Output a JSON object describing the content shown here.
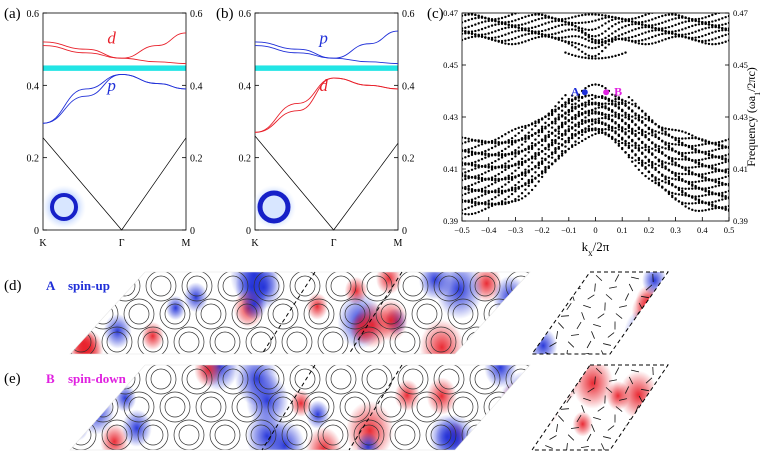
{
  "chart_data": [
    {
      "type": "line",
      "panel": "(a)",
      "xticks": [
        "K",
        "Γ",
        "M"
      ],
      "ylim": [
        0,
        0.6
      ],
      "yticks": [
        0,
        0.2,
        0.4,
        0.6
      ],
      "ytick_labels": [
        "0",
        "0.2",
        "0.4",
        "0.6"
      ],
      "gap": [
        0.44,
        0.455
      ],
      "band_labels": [
        {
          "text": "d",
          "color": "#e8202a"
        },
        {
          "text": "p",
          "color": "#1f2fd8"
        }
      ],
      "series": [
        {
          "color": "#000000",
          "x": [
            0,
            0.55,
            1
          ],
          "values": [
            0.255,
            0.0,
            0.255
          ]
        },
        {
          "color": "#1f2fd8",
          "x": [
            0,
            0.3,
            0.55,
            0.8,
            1
          ],
          "values": [
            0.295,
            0.39,
            0.43,
            0.405,
            0.39
          ]
        },
        {
          "color": "#1f2fd8",
          "x": [
            0,
            0.3,
            0.55,
            0.8,
            1
          ],
          "values": [
            0.295,
            0.37,
            0.43,
            0.405,
            0.39
          ]
        },
        {
          "color": "#e8202a",
          "x": [
            0,
            0.3,
            0.55,
            0.8,
            1
          ],
          "values": [
            0.52,
            0.5,
            0.475,
            0.51,
            0.545
          ]
        },
        {
          "color": "#e8202a",
          "x": [
            0,
            0.3,
            0.55,
            0.8,
            1
          ],
          "values": [
            0.51,
            0.49,
            0.475,
            0.465,
            0.46
          ]
        }
      ]
    },
    {
      "type": "line",
      "panel": "(b)",
      "xticks": [
        "K",
        "Γ",
        "M"
      ],
      "ylim": [
        0,
        0.6
      ],
      "yticks": [
        0,
        0.2,
        0.4,
        0.6
      ],
      "ytick_labels": [
        "0",
        "0.2",
        "0.4",
        "0.6"
      ],
      "gap": [
        0.44,
        0.455
      ],
      "band_labels": [
        {
          "text": "p",
          "color": "#1f2fd8"
        },
        {
          "text": "d",
          "color": "#e8202a"
        }
      ],
      "series": [
        {
          "color": "#000000",
          "x": [
            0,
            0.55,
            1
          ],
          "values": [
            0.26,
            0.0,
            0.24
          ]
        },
        {
          "color": "#e8202a",
          "x": [
            0,
            0.3,
            0.55,
            0.8,
            1
          ],
          "values": [
            0.27,
            0.35,
            0.42,
            0.4,
            0.39
          ]
        },
        {
          "color": "#e8202a",
          "x": [
            0,
            0.3,
            0.55,
            0.8,
            1
          ],
          "values": [
            0.27,
            0.33,
            0.42,
            0.4,
            0.39
          ]
        },
        {
          "color": "#1f2fd8",
          "x": [
            0,
            0.3,
            0.55,
            0.8,
            1
          ],
          "values": [
            0.52,
            0.5,
            0.475,
            0.515,
            0.55
          ]
        },
        {
          "color": "#1f2fd8",
          "x": [
            0,
            0.3,
            0.55,
            0.8,
            1
          ],
          "values": [
            0.51,
            0.49,
            0.475,
            0.465,
            0.46
          ]
        }
      ]
    },
    {
      "type": "scatter",
      "panel": "(c)",
      "xlabel": "k_x/2π",
      "ylabel": "Frequency (ωa_1/2πc)",
      "xlim": [
        -0.5,
        0.5
      ],
      "ylim": [
        0.39,
        0.47
      ],
      "xticks": [
        -0.5,
        -0.4,
        -0.3,
        -0.2,
        -0.1,
        0,
        0.1,
        0.2,
        0.3,
        0.4,
        0.5
      ],
      "xtick_labels": [
        "−0.5",
        "−0.4",
        "−0.3",
        "−0.2",
        "−0.1",
        "0",
        "0.1",
        "0.2",
        "0.3",
        "0.4",
        "0.5"
      ],
      "yticks": [
        0.39,
        0.41,
        0.43,
        0.45,
        0.47
      ],
      "ytick_labels": [
        "0.39",
        "0.41",
        "0.43",
        "0.45",
        "0.47"
      ],
      "edge_state_peak": [
        0,
        0.4425
      ],
      "points": [
        {
          "label": "A",
          "x": -0.04,
          "y": 0.4395,
          "color": "#1f2fd8"
        },
        {
          "label": "B",
          "x": 0.04,
          "y": 0.4395,
          "color": "#e020e0"
        }
      ]
    }
  ],
  "panel_labels": {
    "a": "(a)",
    "b": "(b)",
    "c": "(c)",
    "d": "(d)",
    "e": "(e)"
  },
  "field_rows": [
    {
      "point": "A",
      "point_color": "#1f2fd8",
      "spin": "spin-up",
      "spin_color": "#1f2fd8"
    },
    {
      "point": "B",
      "point_color": "#e020e0",
      "spin": "spin-down",
      "spin_color": "#e020e0"
    }
  ],
  "colors": {
    "gap": "#22e5e5",
    "p_band": "#1f2fd8",
    "d_band": "#e8202a",
    "field_positive": "#e8202a",
    "field_negative": "#1f2fd8"
  }
}
